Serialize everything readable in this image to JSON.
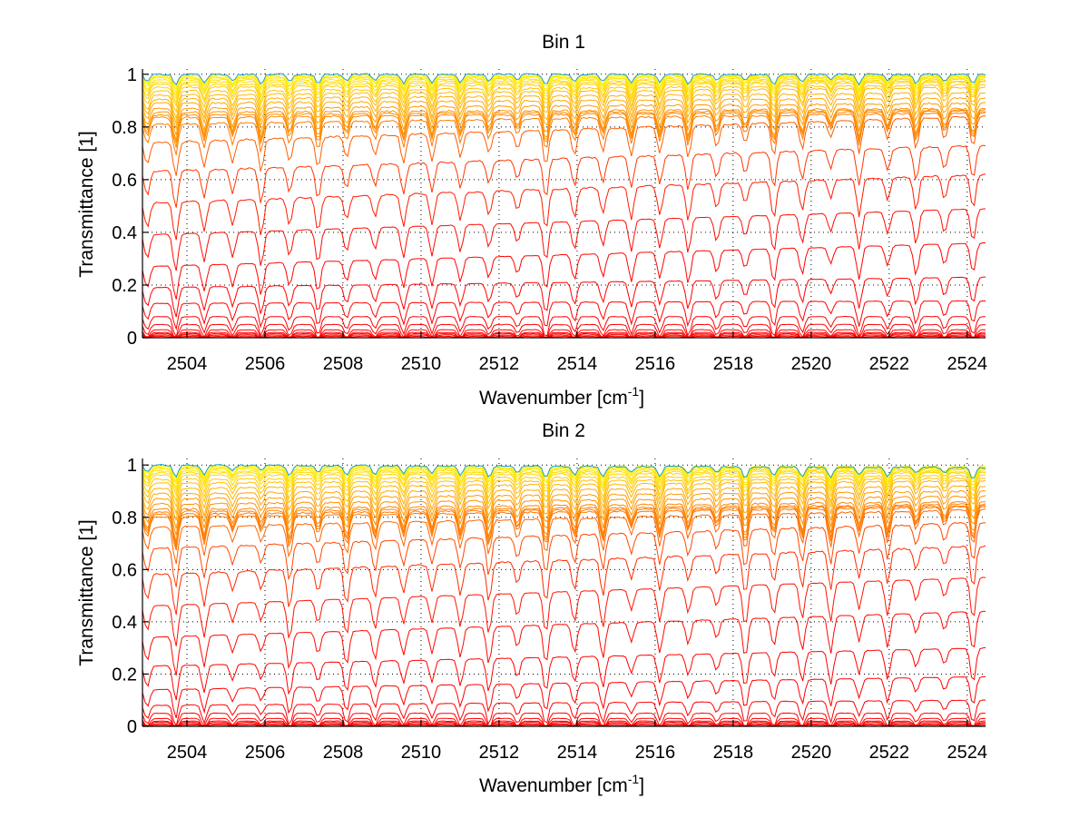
{
  "figure": {
    "background": "#ffffff"
  },
  "chart_data": [
    {
      "type": "line",
      "title": "Bin 1",
      "xlabel": "Wavenumber [cm",
      "xlabel_superscript": "-1",
      "xlabel_suffix": "]",
      "ylabel": "Transmittance [1]",
      "xlim": [
        2502.86,
        2524.47
      ],
      "ylim": [
        0,
        1.02
      ],
      "xticks": [
        2504,
        2506,
        2508,
        2510,
        2512,
        2514,
        2516,
        2518,
        2520,
        2522,
        2524
      ],
      "xtick_labels": [
        "2504",
        "2506",
        "2508",
        "2510",
        "2512",
        "2514",
        "2516",
        "2518",
        "2520",
        "2522",
        "2524"
      ],
      "yticks": [
        0,
        0.2,
        0.4,
        0.6,
        0.8,
        1
      ],
      "ytick_labels": [
        "0",
        "0.2",
        "0.4",
        "0.6",
        "0.8",
        "1"
      ],
      "grid": true,
      "legend": "none",
      "colormap": "autumn (red to yellow), highest curves cyan/blue",
      "line_spacing_cm": 0.73,
      "series_baseline_levels": [
        0.005,
        0.01,
        0.015,
        0.02,
        0.03,
        0.05,
        0.08,
        0.13,
        0.19,
        0.27,
        0.39,
        0.51,
        0.63,
        0.74,
        0.81,
        0.835,
        0.845,
        0.855,
        0.87,
        0.89,
        0.905,
        0.92,
        0.935,
        0.95,
        0.96,
        0.97,
        0.978,
        0.985,
        0.99,
        0.995,
        1.0
      ],
      "series_right_edge_levels": [
        0.005,
        0.01,
        0.015,
        0.02,
        0.03,
        0.05,
        0.08,
        0.14,
        0.23,
        0.36,
        0.49,
        0.62,
        0.73,
        0.84,
        0.855,
        0.86,
        0.865,
        0.87,
        0.89,
        0.91,
        0.93,
        0.95,
        0.96,
        0.97,
        0.975,
        0.98,
        0.985,
        0.99,
        0.993,
        0.996,
        1.0
      ]
    },
    {
      "type": "line",
      "title": "Bin 2",
      "xlabel": "Wavenumber [cm",
      "xlabel_superscript": "-1",
      "xlabel_suffix": "]",
      "ylabel": "Transmittance [1]",
      "xlim": [
        2502.86,
        2524.47
      ],
      "ylim": [
        0,
        1.025
      ],
      "xticks": [
        2504,
        2506,
        2508,
        2510,
        2512,
        2514,
        2516,
        2518,
        2520,
        2522,
        2524
      ],
      "xtick_labels": [
        "2504",
        "2506",
        "2508",
        "2510",
        "2512",
        "2514",
        "2516",
        "2518",
        "2520",
        "2522",
        "2524"
      ],
      "yticks": [
        0,
        0.2,
        0.4,
        0.6,
        0.8,
        1
      ],
      "ytick_labels": [
        "0",
        "0.2",
        "0.4",
        "0.6",
        "0.8",
        "1"
      ],
      "grid": true,
      "legend": "none",
      "colormap": "autumn (red to yellow), highest curves cyan/blue",
      "line_spacing_cm": 0.73,
      "series_baseline_levels": [
        0.005,
        0.01,
        0.015,
        0.02,
        0.03,
        0.05,
        0.08,
        0.14,
        0.23,
        0.34,
        0.46,
        0.58,
        0.68,
        0.76,
        0.8,
        0.81,
        0.82,
        0.83,
        0.85,
        0.87,
        0.89,
        0.91,
        0.93,
        0.945,
        0.96,
        0.97,
        0.978,
        0.985,
        0.99,
        0.995,
        1.0
      ],
      "series_right_edge_levels": [
        0.005,
        0.01,
        0.015,
        0.02,
        0.03,
        0.05,
        0.1,
        0.19,
        0.3,
        0.44,
        0.57,
        0.69,
        0.78,
        0.83,
        0.84,
        0.845,
        0.85,
        0.86,
        0.88,
        0.9,
        0.92,
        0.94,
        0.95,
        0.96,
        0.97,
        0.975,
        0.98,
        0.985,
        0.99,
        0.995,
        0.99
      ]
    }
  ]
}
